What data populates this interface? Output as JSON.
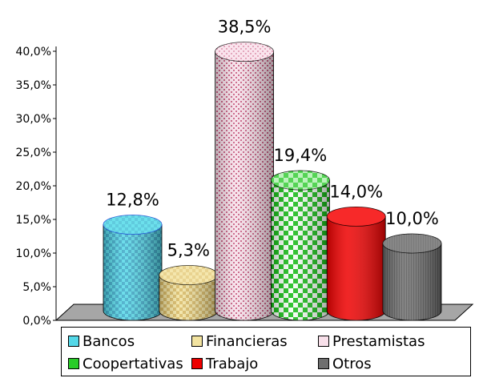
{
  "chart_data": {
    "type": "bar",
    "categories": [
      "Bancos",
      "Financieras",
      "Prestamistas",
      "Coopertativas",
      "Trabajo",
      "Otros"
    ],
    "values": [
      12.8,
      5.3,
      38.5,
      19.4,
      14.0,
      10.0
    ],
    "value_labels": [
      "12,8%",
      "5,3%",
      "38,5%",
      "19,4%",
      "14,0%",
      "10,0%"
    ],
    "title": "",
    "xlabel": "",
    "ylabel": "",
    "ylim": [
      0,
      40
    ],
    "y_ticks": [
      "0,0%",
      "5,0%",
      "10,0%",
      "15,0%",
      "20,0%",
      "25,0%",
      "30,0%",
      "35,0%",
      "40,0%"
    ],
    "grid": false,
    "style": "3d-cylinder",
    "legend_position": "bottom",
    "legend": [
      "Bancos",
      "Financieras",
      "Prestamistas",
      "Coopertativas",
      "Trabajo",
      "Otros"
    ],
    "colors": [
      "#4fd6e6",
      "#eedd8c",
      "#f0c6d6",
      "#29cc29",
      "#ee0000",
      "#777777"
    ]
  }
}
